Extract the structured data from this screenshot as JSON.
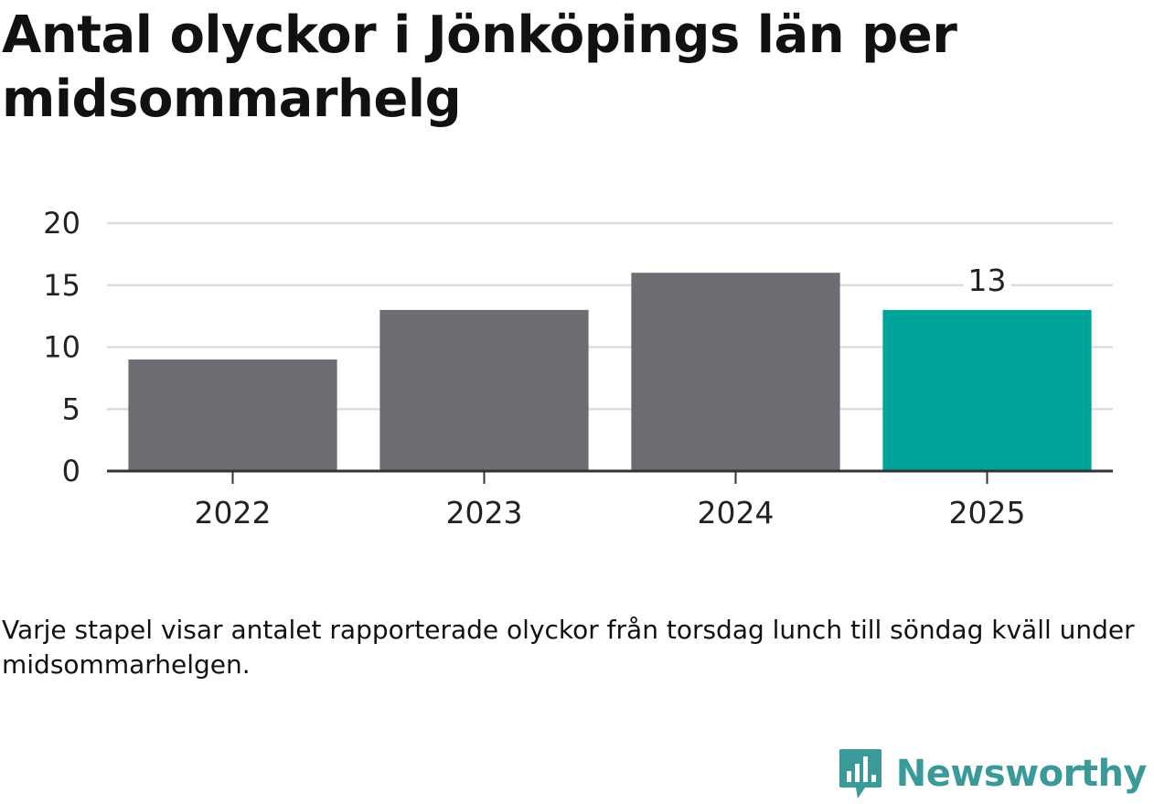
{
  "colors": {
    "bar": "#6d6c72",
    "highlight": "#00a39a",
    "grid": "#dddddd",
    "axis": "#333333",
    "brand": "#3a9a99"
  },
  "caption": "Varje stapel visar antalet rapporterade olyckor från torsdag lunch till söndag kväll under midsommarhelgen.",
  "brand": {
    "name": "Newsworthy",
    "logo_icon": "newsworthy-logo-icon"
  },
  "chart_data": {
    "type": "bar",
    "title": "Antal olyckor i Jönköpings län per midsommarhelg",
    "categories": [
      "2022",
      "2023",
      "2024",
      "2025"
    ],
    "values": [
      9,
      13,
      16,
      13
    ],
    "highlight_index": 3,
    "data_labels": [
      {
        "index": 3,
        "text": "13"
      }
    ],
    "yticks": [
      "0",
      "5",
      "10",
      "15",
      "20"
    ],
    "ylim": [
      0,
      20
    ],
    "xlabel": "",
    "ylabel": "",
    "grid": true,
    "legend": "none"
  }
}
